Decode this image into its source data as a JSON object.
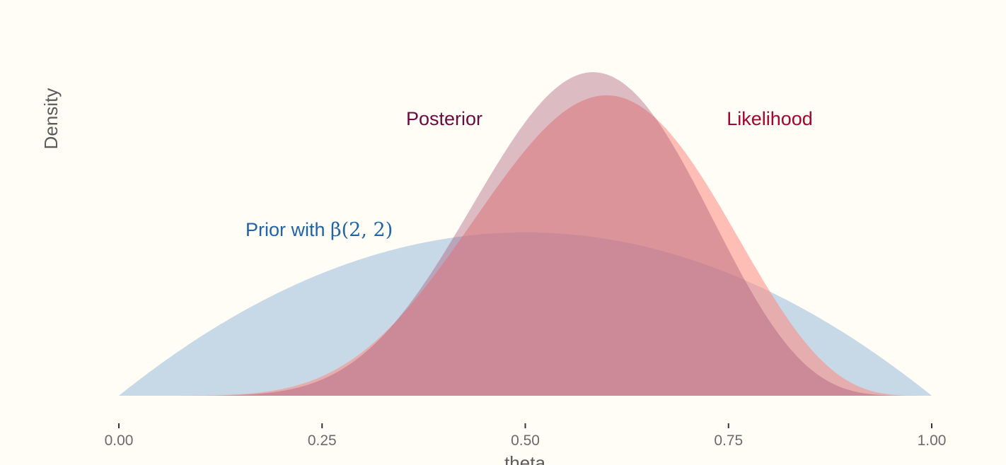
{
  "chart_data": {
    "type": "area",
    "xlabel": "theta",
    "ylabel": "Density",
    "xlim": [
      0,
      1
    ],
    "ylim": [
      0,
      3.2
    ],
    "x_ticks": [
      "0.00",
      "0.25",
      "0.50",
      "0.75",
      "1.00"
    ],
    "grid": false,
    "legend": "none",
    "series": [
      {
        "name": "Prior with β(2, 2)",
        "label_prefix": "Prior with ",
        "label_math": "β(2, 2)",
        "distribution": "beta",
        "alpha": 2,
        "beta": 2,
        "color": "#1f63a8",
        "fill": "#a9c4dd",
        "fill_opacity": 0.65
      },
      {
        "name": "Likelihood",
        "distribution": "beta",
        "alpha": 7,
        "beta": 5,
        "color": "#a3052b",
        "fill": "#ff8a80",
        "fill_opacity": 0.55
      },
      {
        "name": "Posterior",
        "distribution": "beta",
        "alpha": 8,
        "beta": 6,
        "color": "#6b0a3d",
        "fill": "#a24f71",
        "fill_opacity": 0.38
      }
    ]
  }
}
